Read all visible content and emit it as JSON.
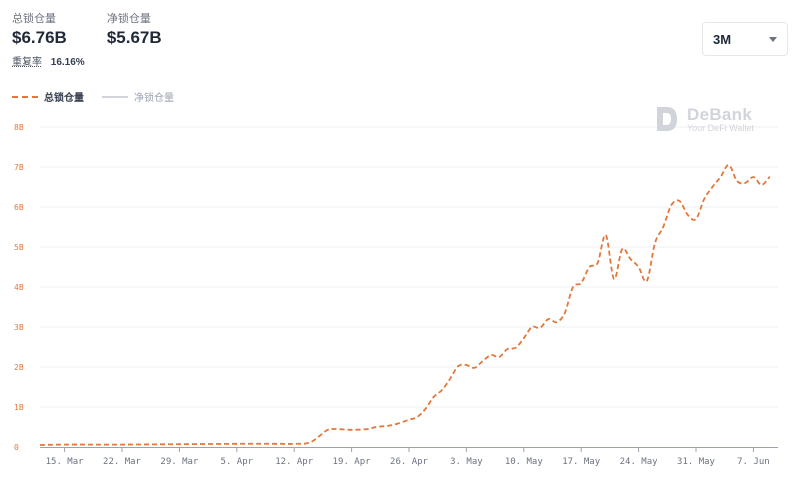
{
  "stats": {
    "tvl_label": "总锁仓量",
    "tvl_value": "$6.76B",
    "net_label": "净锁仓量",
    "net_value": "$5.67B",
    "ratio_label": "重复率",
    "ratio_value": "16.16%"
  },
  "range_selector": {
    "value": "3M"
  },
  "watermark": {
    "title": "DeBank",
    "subtitle": "Your DeFi Wallet"
  },
  "colors": {
    "series_tvl": "#e4773a",
    "series_net": "#d1d5db",
    "grid": "#eceff3"
  },
  "chart_data": {
    "type": "line",
    "title": "",
    "xlabel": "",
    "ylabel": "",
    "ylim": [
      0,
      8
    ],
    "yticks": [
      0,
      1,
      2,
      3,
      4,
      5,
      6,
      7,
      8
    ],
    "ytick_labels": [
      "0",
      "1B",
      "2B",
      "3B",
      "4B",
      "5B",
      "6B",
      "7B",
      "8B"
    ],
    "xlim": [
      "2021-03-12",
      "2021-06-10"
    ],
    "xticks": [
      "2021-03-15",
      "2021-03-22",
      "2021-03-29",
      "2021-04-05",
      "2021-04-12",
      "2021-04-19",
      "2021-04-26",
      "2021-05-03",
      "2021-05-10",
      "2021-05-17",
      "2021-05-24",
      "2021-05-31",
      "2021-06-07"
    ],
    "xtick_labels": [
      "15. Mar",
      "22. Mar",
      "29. Mar",
      "5. Apr",
      "12. Apr",
      "19. Apr",
      "26. Apr",
      "3. May",
      "10. May",
      "17. May",
      "24. May",
      "31. May",
      "7. Jun"
    ],
    "grid": true,
    "legend": "top-left",
    "series": [
      {
        "name": "总锁仓量",
        "style": "dashed",
        "x": [
          "2021-03-12",
          "2021-03-15",
          "2021-03-22",
          "2021-03-29",
          "2021-04-05",
          "2021-04-10",
          "2021-04-12",
          "2021-04-14",
          "2021-04-16",
          "2021-04-17",
          "2021-04-19",
          "2021-04-21",
          "2021-04-22",
          "2021-04-24",
          "2021-04-26",
          "2021-04-27",
          "2021-04-28",
          "2021-04-29",
          "2021-04-30",
          "2021-05-01",
          "2021-05-02",
          "2021-05-03",
          "2021-05-04",
          "2021-05-05",
          "2021-05-06",
          "2021-05-07",
          "2021-05-08",
          "2021-05-09",
          "2021-05-10",
          "2021-05-11",
          "2021-05-12",
          "2021-05-13",
          "2021-05-14",
          "2021-05-15",
          "2021-05-16",
          "2021-05-17",
          "2021-05-18",
          "2021-05-19",
          "2021-05-20",
          "2021-05-21",
          "2021-05-22",
          "2021-05-23",
          "2021-05-24",
          "2021-05-25",
          "2021-05-26",
          "2021-05-27",
          "2021-05-28",
          "2021-05-29",
          "2021-05-30",
          "2021-05-31",
          "2021-06-01",
          "2021-06-02",
          "2021-06-03",
          "2021-06-04",
          "2021-06-05",
          "2021-06-06",
          "2021-06-07",
          "2021-06-08",
          "2021-06-09"
        ],
        "y": [
          0.05,
          0.06,
          0.06,
          0.07,
          0.08,
          0.08,
          0.08,
          0.12,
          0.42,
          0.45,
          0.43,
          0.45,
          0.5,
          0.55,
          0.68,
          0.75,
          0.95,
          1.25,
          1.42,
          1.7,
          2.02,
          2.05,
          1.98,
          2.15,
          2.3,
          2.25,
          2.45,
          2.48,
          2.72,
          3.0,
          2.98,
          3.2,
          3.12,
          3.35,
          4.0,
          4.1,
          4.5,
          4.6,
          5.3,
          4.2,
          4.95,
          4.7,
          4.5,
          4.15,
          5.1,
          5.5,
          6.05,
          6.15,
          5.8,
          5.7,
          6.2,
          6.5,
          6.75,
          7.05,
          6.65,
          6.6,
          6.75,
          6.55,
          6.76
        ]
      },
      {
        "name": "净锁仓量",
        "style": "solid",
        "visible": false,
        "x": [],
        "y": []
      }
    ]
  }
}
